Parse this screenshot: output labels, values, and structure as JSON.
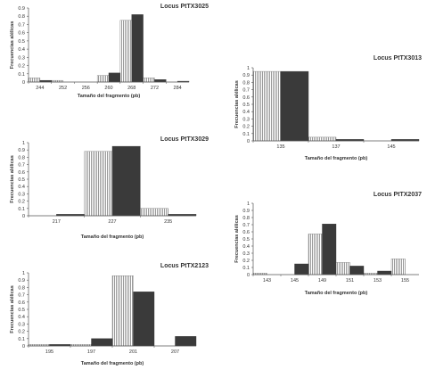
{
  "colors": {
    "dark_bar": "#3a3a3a",
    "striped_bar": "#9a9a9a",
    "axis": "#555555"
  },
  "chart_data": [
    {
      "type": "bar",
      "title": "Locus PtTX3025",
      "ylabel": "Frecuencias alélicas",
      "xlabel": "Tamaño del fragmento (pb)",
      "ylim": [
        0,
        0.9
      ],
      "yticks": [
        "0",
        "0.1",
        "0.2",
        "0.3",
        "0.4",
        "0.5",
        "0.6",
        "0.7",
        "0.8",
        "0.9"
      ],
      "categories": [
        "244",
        "252",
        "256",
        "260",
        "268",
        "272",
        "284"
      ],
      "series": [
        {
          "pattern": "striped",
          "values": [
            0.05,
            0.02,
            0.0,
            0.08,
            0.75,
            0.05,
            0.0
          ]
        },
        {
          "pattern": "dark",
          "values": [
            0.02,
            0.0,
            0.0,
            0.11,
            0.82,
            0.03,
            0.01
          ]
        }
      ]
    },
    {
      "type": "bar",
      "title": "Locus PtTX3013",
      "ylabel": "Frecuencias alélicas",
      "xlabel": "Tamaño del fragmento (pb)",
      "ylim": [
        0,
        1
      ],
      "yticks": [
        "0",
        "0.1",
        "0.2",
        "0.3",
        "0.4",
        "0.5",
        "0.6",
        "0.7",
        "0.8",
        "0.9",
        "1"
      ],
      "categories": [
        "135",
        "137",
        "145"
      ],
      "series": [
        {
          "pattern": "striped",
          "values": [
            0.95,
            0.05,
            0.0
          ]
        },
        {
          "pattern": "dark",
          "values": [
            0.95,
            0.02,
            0.02
          ]
        }
      ]
    },
    {
      "type": "bar",
      "title": "Locus PtTX3029",
      "ylabel": "Frecuencias alélicas",
      "xlabel": "Tamaño del fragmento (pb)",
      "ylim": [
        0,
        1
      ],
      "yticks": [
        "0",
        "0.1",
        "0.2",
        "0.3",
        "0.4",
        "0.5",
        "0.6",
        "0.7",
        "0.8",
        "0.9",
        "1"
      ],
      "categories": [
        "217",
        "227",
        "235"
      ],
      "series": [
        {
          "pattern": "striped",
          "values": [
            0.0,
            0.88,
            0.1
          ]
        },
        {
          "pattern": "dark",
          "values": [
            0.02,
            0.95,
            0.02
          ]
        }
      ]
    },
    {
      "type": "bar",
      "title": "Locus PtTX2037",
      "ylabel": "Frecuencias alélicas",
      "xlabel": "Tamaño del fragmento (pb)",
      "ylim": [
        0,
        1
      ],
      "yticks": [
        "0",
        "0.1",
        "0.2",
        "0.3",
        "0.4",
        "0.5",
        "0.6",
        "0.7",
        "0.8",
        "0.9",
        "1"
      ],
      "categories": [
        "143",
        "145",
        "149",
        "151",
        "153",
        "155"
      ],
      "series": [
        {
          "pattern": "striped",
          "values": [
            0.02,
            0.0,
            0.57,
            0.17,
            0.02,
            0.22
          ]
        },
        {
          "pattern": "dark",
          "values": [
            0.0,
            0.15,
            0.71,
            0.12,
            0.05,
            0.0
          ]
        }
      ]
    },
    {
      "type": "bar",
      "title": "Locus PtTX2123",
      "ylabel": "Frecuencias alélicas",
      "xlabel": "Tamaño del fragmento (pb)",
      "ylim": [
        0,
        1
      ],
      "yticks": [
        "0",
        "0.1",
        "0.2",
        "0.3",
        "0.4",
        "0.5",
        "0.6",
        "0.7",
        "0.8",
        "0.9",
        "1"
      ],
      "categories": [
        "195",
        "197",
        "201",
        "207"
      ],
      "series": [
        {
          "pattern": "striped",
          "values": [
            0.02,
            0.02,
            0.96,
            0.0
          ]
        },
        {
          "pattern": "dark",
          "values": [
            0.02,
            0.1,
            0.74,
            0.13
          ]
        }
      ]
    }
  ]
}
